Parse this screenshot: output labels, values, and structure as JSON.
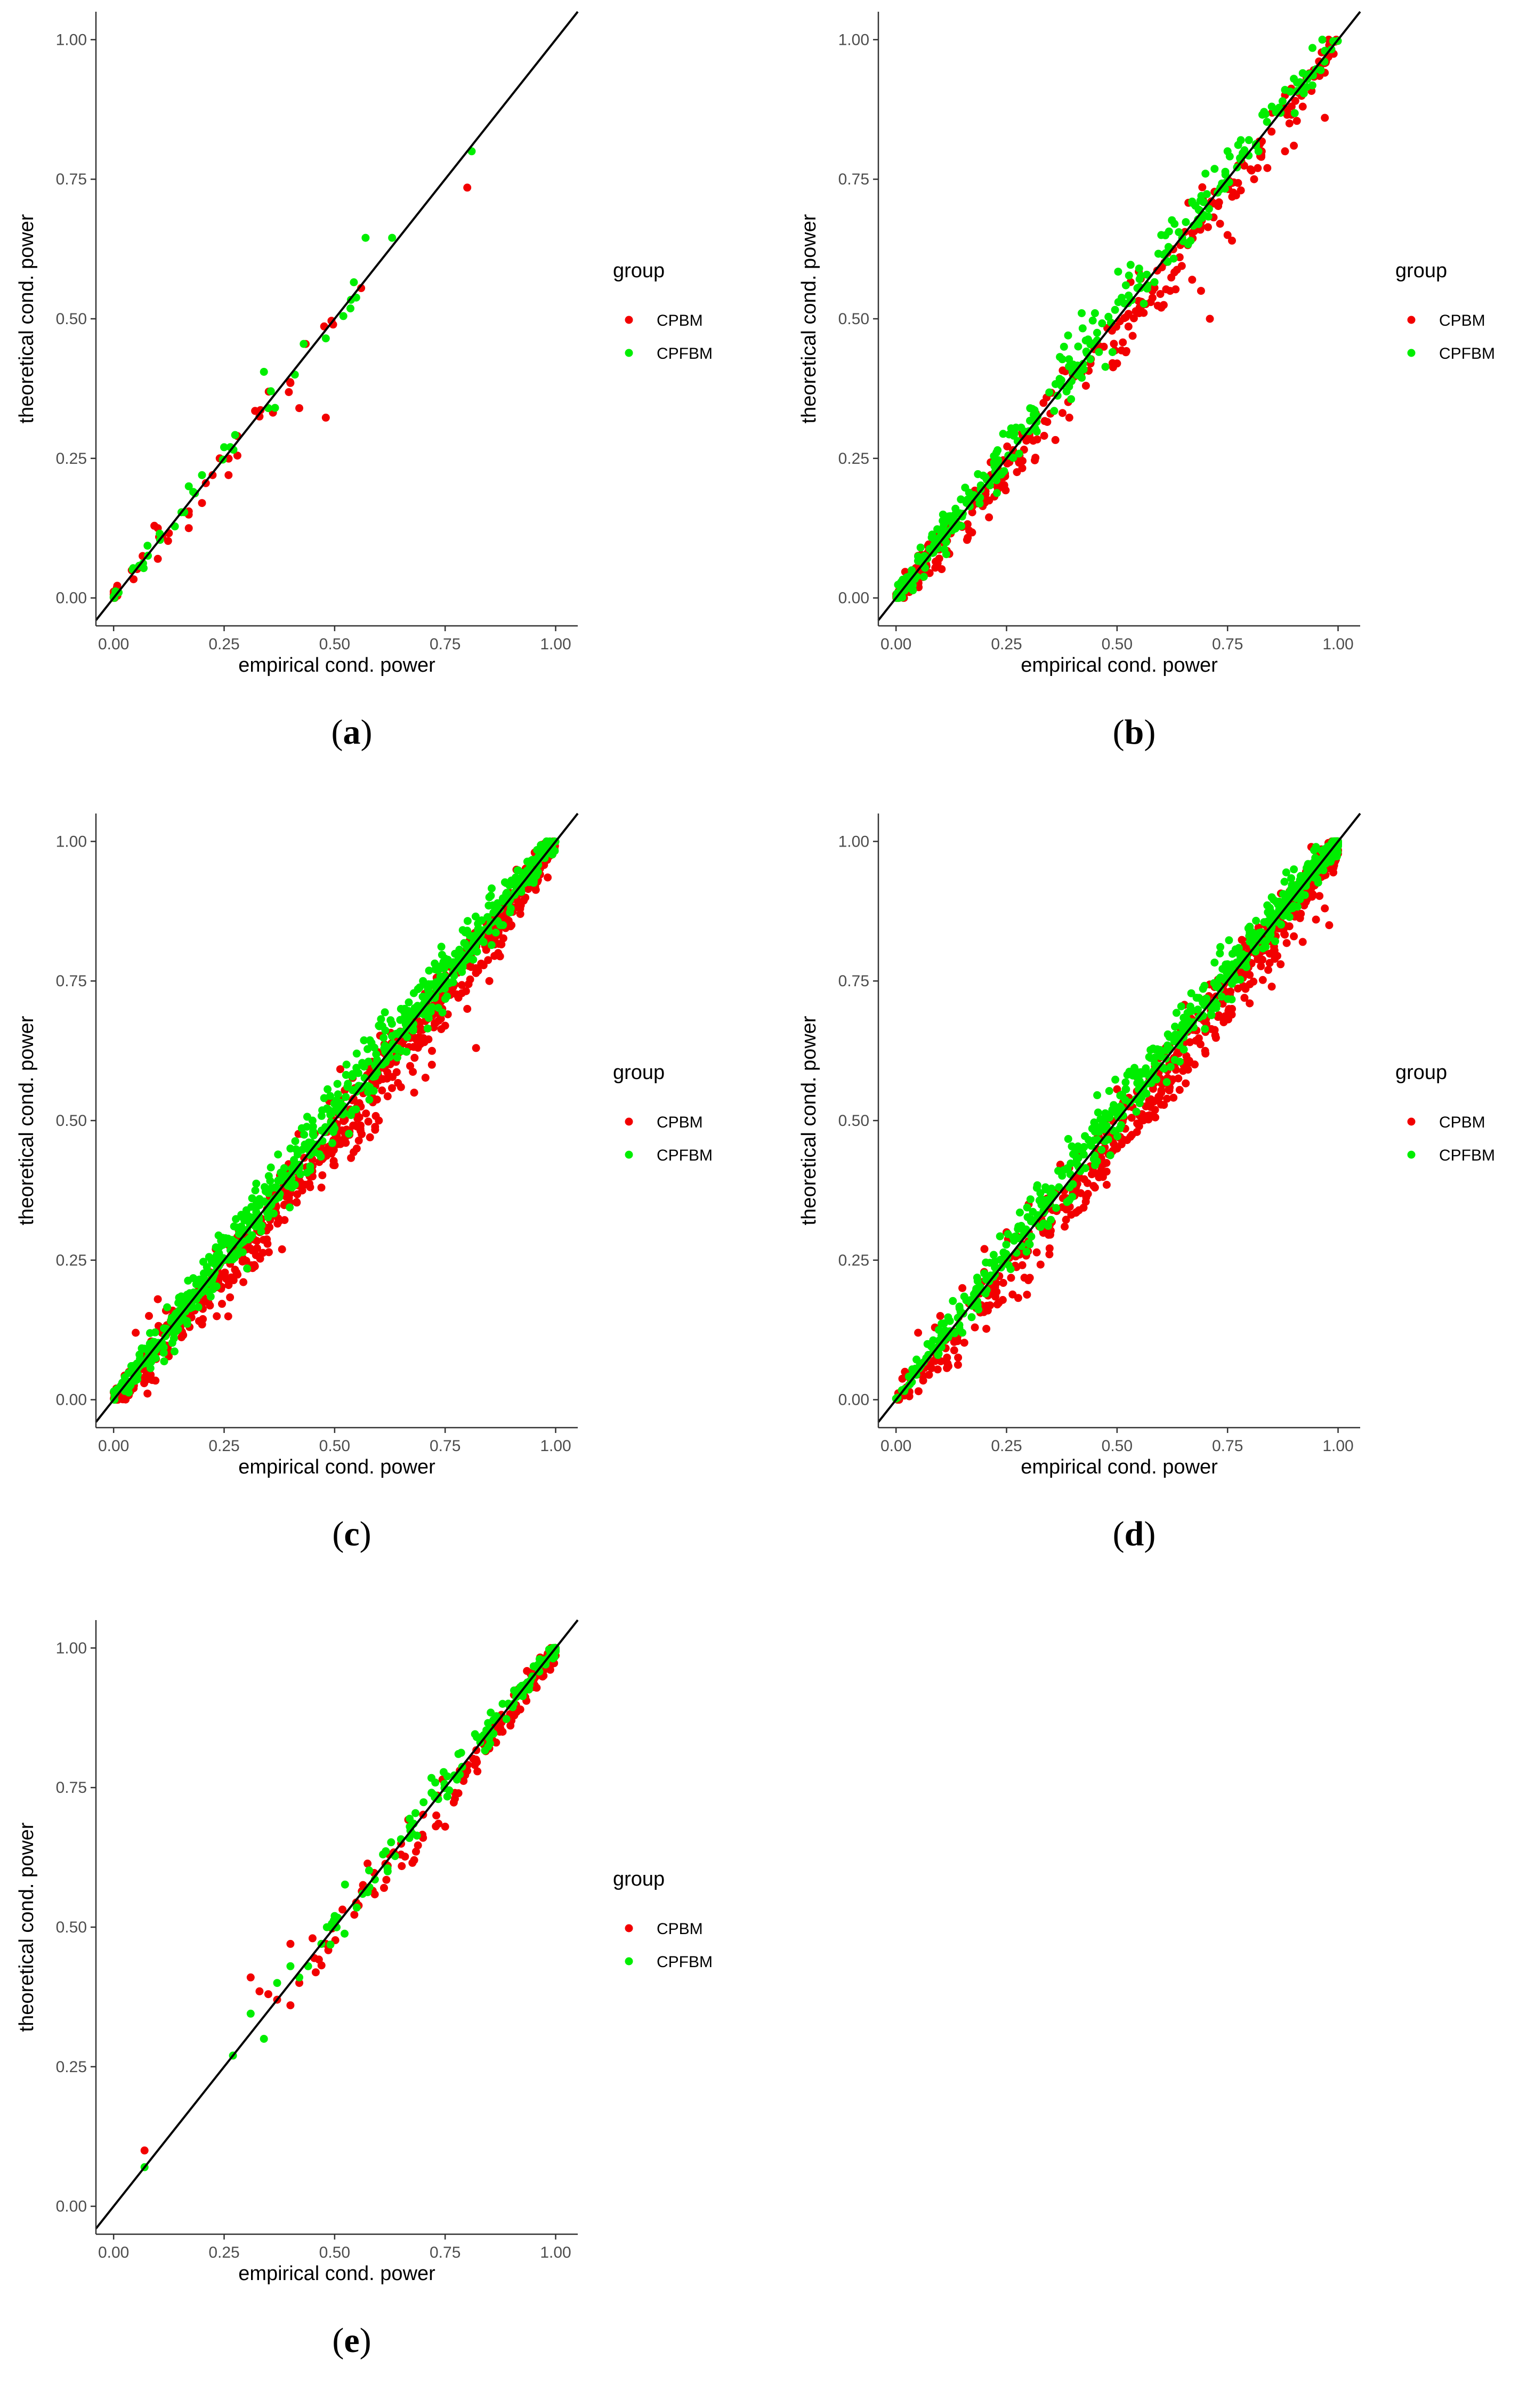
{
  "figure": {
    "panel_ids": [
      "a",
      "b",
      "c",
      "d",
      "e"
    ]
  },
  "colors": {
    "CPBM": "#f20000",
    "CPFBM": "#00ee00",
    "identity_line": "#000000",
    "axis": "#333333",
    "tick_text": "#4d4d4d"
  },
  "chart_data": [
    {
      "id": "a",
      "type": "scatter",
      "caption_open": "(",
      "caption_letter": "a",
      "caption_close": ")",
      "xlabel": "empirical cond. power",
      "ylabel": "theoretical cond. power",
      "xlim": [
        -0.04,
        1.05
      ],
      "ylim": [
        -0.05,
        1.05
      ],
      "xticks": [
        0.0,
        0.25,
        0.5,
        0.75,
        1.0
      ],
      "yticks": [
        0.0,
        0.25,
        0.5,
        0.75,
        1.0
      ],
      "xtick_labels": [
        "0.00",
        "0.25",
        "0.50",
        "0.75",
        "1.00"
      ],
      "ytick_labels": [
        "0.00",
        "0.25",
        "0.50",
        "0.75",
        "1.00"
      ],
      "legend": {
        "title": "group",
        "entries": [
          "CPBM",
          "CPFBM"
        ],
        "position": "right"
      },
      "reference_line": {
        "slope": 1,
        "intercept": 0
      },
      "series": [
        {
          "name": "CPBM",
          "color": "#f20000",
          "n": 35,
          "spread": 0.012,
          "bias": -0.004,
          "dist": "low",
          "points": [
            [
              0.8,
              0.735
            ],
            [
              0.56,
              0.555
            ],
            [
              0.48,
              0.323
            ],
            [
              0.42,
              0.34
            ],
            [
              0.4,
              0.385
            ],
            [
              0.33,
              0.325
            ],
            [
              0.32,
              0.335
            ],
            [
              0.28,
              0.255
            ],
            [
              0.28,
              0.29
            ],
            [
              0.26,
              0.22
            ],
            [
              0.2,
              0.17
            ],
            [
              0.24,
              0.25
            ],
            [
              0.17,
              0.125
            ],
            [
              0.17,
              0.155
            ],
            [
              0.1,
              0.125
            ],
            [
              0.1,
              0.07
            ]
          ]
        },
        {
          "name": "CPFBM",
          "color": "#00ee00",
          "n": 30,
          "spread": 0.01,
          "bias": 0.004,
          "dist": "low",
          "points": [
            [
              0.81,
              0.8
            ],
            [
              0.63,
              0.645
            ],
            [
              0.57,
              0.645
            ],
            [
              0.48,
              0.465
            ],
            [
              0.43,
              0.455
            ],
            [
              0.41,
              0.4
            ],
            [
              0.34,
              0.405
            ],
            [
              0.35,
              0.34
            ],
            [
              0.25,
              0.27
            ],
            [
              0.2,
              0.22
            ],
            [
              0.17,
              0.2
            ],
            [
              0.18,
              0.19
            ]
          ]
        }
      ]
    },
    {
      "id": "b",
      "type": "scatter",
      "caption_open": "(",
      "caption_letter": "b",
      "caption_close": ")",
      "xlabel": "empirical cond. power",
      "ylabel": "theoretical cond. power",
      "xlim": [
        -0.04,
        1.05
      ],
      "ylim": [
        -0.05,
        1.05
      ],
      "xticks": [
        0.0,
        0.25,
        0.5,
        0.75,
        1.0
      ],
      "yticks": [
        0.0,
        0.25,
        0.5,
        0.75,
        1.0
      ],
      "xtick_labels": [
        "0.00",
        "0.25",
        "0.50",
        "0.75",
        "1.00"
      ],
      "ytick_labels": [
        "0.00",
        "0.25",
        "0.50",
        "0.75",
        "1.00"
      ],
      "legend": {
        "title": "group",
        "entries": [
          "CPBM",
          "CPFBM"
        ],
        "position": "right"
      },
      "reference_line": {
        "slope": 1,
        "intercept": 0
      },
      "series": [
        {
          "name": "CPBM",
          "color": "#f20000",
          "n": 300,
          "spread": 0.018,
          "bias": -0.02,
          "dist": "skewlow",
          "points": [
            [
              0.98,
              0.99
            ],
            [
              0.97,
              0.86
            ],
            [
              0.92,
              0.88
            ],
            [
              0.9,
              0.81
            ],
            [
              0.89,
              0.85
            ],
            [
              0.88,
              0.8
            ],
            [
              0.84,
              0.77
            ],
            [
              0.81,
              0.75
            ],
            [
              0.78,
              0.73
            ],
            [
              0.76,
              0.64
            ],
            [
              0.75,
              0.65
            ],
            [
              0.71,
              0.5
            ],
            [
              0.69,
              0.55
            ],
            [
              0.67,
              0.57
            ],
            [
              0.62,
              0.55
            ],
            [
              0.6,
              0.52
            ],
            [
              0.58,
              0.55
            ],
            [
              0.55,
              0.51
            ],
            [
              0.52,
              0.44
            ],
            [
              0.5,
              0.42
            ],
            [
              0.47,
              0.45
            ],
            [
              0.44,
              0.42
            ],
            [
              0.4,
              0.4
            ]
          ]
        },
        {
          "name": "CPFBM",
          "color": "#00ee00",
          "n": 300,
          "spread": 0.015,
          "bias": 0.012,
          "dist": "skewlow",
          "points": [
            [
              0.97,
              0.98
            ],
            [
              0.92,
              0.94
            ],
            [
              0.9,
              0.93
            ],
            [
              0.88,
              0.91
            ],
            [
              0.85,
              0.88
            ],
            [
              0.82,
              0.8
            ],
            [
              0.78,
              0.82
            ],
            [
              0.75,
              0.8
            ],
            [
              0.7,
              0.76
            ],
            [
              0.67,
              0.71
            ],
            [
              0.63,
              0.67
            ],
            [
              0.6,
              0.65
            ],
            [
              0.55,
              0.59
            ],
            [
              0.52,
              0.56
            ],
            [
              0.45,
              0.51
            ],
            [
              0.42,
              0.51
            ],
            [
              0.38,
              0.45
            ]
          ]
        }
      ]
    },
    {
      "id": "c",
      "type": "scatter",
      "caption_open": "(",
      "caption_letter": "c",
      "caption_close": ")",
      "xlabel": "empirical cond. power",
      "ylabel": "theoretical cond. power",
      "xlim": [
        -0.04,
        1.05
      ],
      "ylim": [
        -0.05,
        1.05
      ],
      "xticks": [
        0.0,
        0.25,
        0.5,
        0.75,
        1.0
      ],
      "yticks": [
        0.0,
        0.25,
        0.5,
        0.75,
        1.0
      ],
      "xtick_labels": [
        "0.00",
        "0.25",
        "0.50",
        "0.75",
        "1.00"
      ],
      "ytick_labels": [
        "0.00",
        "0.25",
        "0.50",
        "0.75",
        "1.00"
      ],
      "legend": {
        "title": "group",
        "entries": [
          "CPBM",
          "CPFBM"
        ],
        "position": "right"
      },
      "reference_line": {
        "slope": 1,
        "intercept": 0
      },
      "series": [
        {
          "name": "CPBM",
          "color": "#f20000",
          "n": 700,
          "spread": 0.02,
          "bias": -0.025,
          "dist": "uniform",
          "points": [
            [
              0.92,
              0.87
            ],
            [
              0.9,
              0.85
            ],
            [
              0.87,
              0.8
            ],
            [
              0.85,
              0.75
            ],
            [
              0.82,
              0.63
            ],
            [
              0.8,
              0.7
            ],
            [
              0.78,
              0.72
            ],
            [
              0.75,
              0.67
            ],
            [
              0.72,
              0.6
            ],
            [
              0.68,
              0.55
            ],
            [
              0.65,
              0.56
            ],
            [
              0.6,
              0.5
            ],
            [
              0.58,
              0.47
            ],
            [
              0.55,
              0.45
            ],
            [
              0.52,
              0.5
            ],
            [
              0.5,
              0.42
            ],
            [
              0.47,
              0.38
            ],
            [
              0.45,
              0.4
            ],
            [
              0.1,
              0.18
            ],
            [
              0.08,
              0.15
            ],
            [
              0.05,
              0.12
            ]
          ]
        },
        {
          "name": "CPFBM",
          "color": "#00ee00",
          "n": 700,
          "spread": 0.016,
          "bias": 0.01,
          "dist": "uniform",
          "points": [
            [
              0.98,
              1.0
            ],
            [
              0.9,
              0.93
            ],
            [
              0.85,
              0.9
            ],
            [
              0.8,
              0.84
            ],
            [
              0.75,
              0.79
            ],
            [
              0.7,
              0.75
            ],
            [
              0.65,
              0.7
            ],
            [
              0.6,
              0.67
            ],
            [
              0.55,
              0.62
            ],
            [
              0.45,
              0.5
            ],
            [
              0.4,
              0.45
            ],
            [
              0.35,
              0.37
            ]
          ]
        }
      ]
    },
    {
      "id": "d",
      "type": "scatter",
      "caption_open": "(",
      "caption_letter": "d",
      "caption_close": ")",
      "xlabel": "empirical cond. power",
      "ylabel": "theoretical cond. power",
      "xlim": [
        -0.04,
        1.05
      ],
      "ylim": [
        -0.05,
        1.05
      ],
      "xticks": [
        0.0,
        0.25,
        0.5,
        0.75,
        1.0
      ],
      "yticks": [
        0.0,
        0.25,
        0.5,
        0.75,
        1.0
      ],
      "xtick_labels": [
        "0.00",
        "0.25",
        "0.50",
        "0.75",
        "1.00"
      ],
      "ytick_labels": [
        "0.00",
        "0.25",
        "0.50",
        "0.75",
        "1.00"
      ],
      "legend": {
        "title": "group",
        "entries": [
          "CPBM",
          "CPFBM"
        ],
        "position": "right"
      },
      "reference_line": {
        "slope": 1,
        "intercept": 0
      },
      "series": [
        {
          "name": "CPBM",
          "color": "#f20000",
          "n": 650,
          "spread": 0.02,
          "bias": -0.028,
          "dist": "skewhigh",
          "points": [
            [
              0.98,
              0.85
            ],
            [
              0.97,
              0.88
            ],
            [
              0.95,
              0.86
            ],
            [
              0.92,
              0.82
            ],
            [
              0.9,
              0.83
            ],
            [
              0.87,
              0.78
            ],
            [
              0.85,
              0.74
            ],
            [
              0.8,
              0.71
            ],
            [
              0.76,
              0.7
            ],
            [
              0.7,
              0.62
            ],
            [
              0.65,
              0.6
            ],
            [
              0.6,
              0.55
            ],
            [
              0.55,
              0.49
            ],
            [
              0.5,
              0.45
            ],
            [
              0.45,
              0.38
            ],
            [
              0.4,
              0.37
            ],
            [
              0.3,
              0.35
            ],
            [
              0.25,
              0.3
            ],
            [
              0.2,
              0.27
            ],
            [
              0.15,
              0.2
            ],
            [
              0.1,
              0.15
            ],
            [
              0.05,
              0.12
            ],
            [
              0.02,
              0.05
            ]
          ]
        },
        {
          "name": "CPFBM",
          "color": "#00ee00",
          "n": 650,
          "spread": 0.016,
          "bias": 0.012,
          "dist": "skewhigh",
          "points": [
            [
              0.99,
              1.0
            ],
            [
              0.95,
              0.99
            ],
            [
              0.9,
              0.95
            ],
            [
              0.85,
              0.9
            ],
            [
              0.8,
              0.84
            ],
            [
              0.75,
              0.78
            ],
            [
              0.68,
              0.72
            ],
            [
              0.62,
              0.65
            ],
            [
              0.55,
              0.58
            ],
            [
              0.45,
              0.48
            ],
            [
              0.35,
              0.36
            ],
            [
              0.3,
              0.28
            ],
            [
              0.22,
              0.22
            ],
            [
              0.15,
              0.12
            ]
          ]
        }
      ]
    },
    {
      "id": "e",
      "type": "scatter",
      "caption_open": "(",
      "caption_letter": "e",
      "caption_close": ")",
      "xlabel": "empirical cond. power",
      "ylabel": "theoretical cond. power",
      "xlim": [
        -0.04,
        1.05
      ],
      "ylim": [
        -0.05,
        1.05
      ],
      "xticks": [
        0.0,
        0.25,
        0.5,
        0.75,
        1.0
      ],
      "yticks": [
        0.0,
        0.25,
        0.5,
        0.75,
        1.0
      ],
      "xtick_labels": [
        "0.00",
        "0.25",
        "0.50",
        "0.75",
        "1.00"
      ],
      "ytick_labels": [
        "0.00",
        "0.25",
        "0.50",
        "0.75",
        "1.00"
      ],
      "legend": {
        "title": "group",
        "entries": [
          "CPBM",
          "CPFBM"
        ],
        "position": "right"
      },
      "reference_line": {
        "slope": 1,
        "intercept": 0
      },
      "series": [
        {
          "name": "CPBM",
          "color": "#f20000",
          "n": 150,
          "spread": 0.015,
          "bias": -0.02,
          "dist": "high",
          "points": [
            [
              0.07,
              0.1
            ],
            [
              0.31,
              0.41
            ],
            [
              0.33,
              0.385
            ],
            [
              0.35,
              0.38
            ],
            [
              0.37,
              0.37
            ],
            [
              0.4,
              0.47
            ],
            [
              0.4,
              0.36
            ],
            [
              0.42,
              0.4
            ],
            [
              0.45,
              0.48
            ],
            [
              0.48,
              0.47
            ],
            [
              0.62,
              0.61
            ],
            [
              0.65,
              0.63
            ],
            [
              0.68,
              0.62
            ],
            [
              0.7,
              0.66
            ],
            [
              0.73,
              0.7
            ],
            [
              0.75,
              0.68
            ],
            [
              0.78,
              0.74
            ],
            [
              0.8,
              0.78
            ],
            [
              0.82,
              0.8
            ],
            [
              0.85,
              0.82
            ],
            [
              0.88,
              0.85
            ],
            [
              0.9,
              0.87
            ],
            [
              0.92,
              0.89
            ],
            [
              0.95,
              0.93
            ]
          ]
        },
        {
          "name": "CPFBM",
          "color": "#00ee00",
          "n": 120,
          "spread": 0.012,
          "bias": 0.005,
          "dist": "high",
          "points": [
            [
              0.07,
              0.07
            ],
            [
              0.27,
              0.27
            ],
            [
              0.31,
              0.345
            ],
            [
              0.34,
              0.3
            ],
            [
              0.37,
              0.4
            ],
            [
              0.4,
              0.43
            ],
            [
              0.42,
              0.41
            ],
            [
              0.44,
              0.43
            ],
            [
              0.47,
              0.47
            ],
            [
              0.5,
              0.52
            ],
            [
              0.55,
              0.535
            ],
            [
              0.62,
              0.6
            ],
            [
              0.67,
              0.68
            ],
            [
              0.72,
              0.74
            ],
            [
              0.78,
              0.81
            ],
            [
              0.83,
              0.84
            ],
            [
              0.88,
              0.9
            ],
            [
              0.92,
              0.93
            ],
            [
              0.96,
              0.97
            ]
          ]
        }
      ]
    }
  ]
}
